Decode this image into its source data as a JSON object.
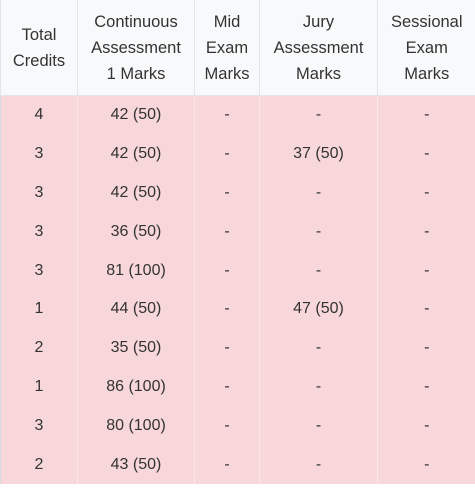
{
  "headers": [
    [
      "Total",
      "Credits"
    ],
    [
      "Continuous",
      "Assessment",
      "1 Marks"
    ],
    [
      "Mid",
      "Exam",
      "Marks"
    ],
    [
      "Jury",
      "Assessment",
      "Marks"
    ],
    [
      "Sessional",
      "Exam",
      "Marks"
    ]
  ],
  "rows": [
    [
      "4",
      "42 (50)",
      "-",
      "-",
      "-"
    ],
    [
      "3",
      "42 (50)",
      "-",
      "37 (50)",
      "-"
    ],
    [
      "3",
      "42 (50)",
      "-",
      "-",
      "-"
    ],
    [
      "3",
      "36 (50)",
      "-",
      "-",
      "-"
    ],
    [
      "3",
      "81 (100)",
      "-",
      "-",
      "-"
    ],
    [
      "1",
      "44 (50)",
      "-",
      "47 (50)",
      "-"
    ],
    [
      "2",
      "35 (50)",
      "-",
      "-",
      "-"
    ],
    [
      "1",
      "86 (100)",
      "-",
      "-",
      "-"
    ],
    [
      "3",
      "80 (100)",
      "-",
      "-",
      "-"
    ],
    [
      "2",
      "43 (50)",
      "-",
      "-",
      "-"
    ]
  ],
  "colors": {
    "header_bg": "#f8f9fa",
    "row_bg": "#f8d7da",
    "text": "#333333"
  }
}
